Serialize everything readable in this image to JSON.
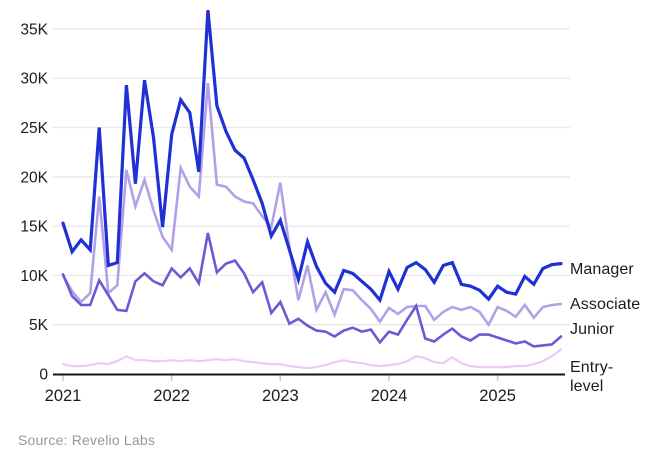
{
  "chart_data": {
    "type": "line",
    "title": "",
    "xlabel": "",
    "ylabel": "",
    "x_unit": "month",
    "x_start": "2021-01",
    "x_end": "2025-08",
    "grid": "horizontal",
    "legend_position": "right-of-line-ends",
    "ylim": [
      0,
      37500
    ],
    "y_ticks": [
      {
        "value": 0,
        "label": "0"
      },
      {
        "value": 5000,
        "label": "5K"
      },
      {
        "value": 10000,
        "label": "10K"
      },
      {
        "value": 15000,
        "label": "15K"
      },
      {
        "value": 20000,
        "label": "20K"
      },
      {
        "value": 25000,
        "label": "25K"
      },
      {
        "value": 30000,
        "label": "30K"
      },
      {
        "value": 35000,
        "label": "35K"
      }
    ],
    "x_ticks": [
      "2021",
      "2022",
      "2023",
      "2024",
      "2025"
    ],
    "series": [
      {
        "name": "Entry-level",
        "color": "#eaccf2",
        "width": 2.2,
        "values": [
          1000,
          800,
          800,
          900,
          1100,
          1000,
          1300,
          1800,
          1400,
          1400,
          1300,
          1300,
          1400,
          1300,
          1400,
          1300,
          1400,
          1500,
          1400,
          1500,
          1300,
          1200,
          1100,
          1000,
          1000,
          800,
          700,
          600,
          700,
          900,
          1200,
          1400,
          1200,
          1100,
          900,
          800,
          900,
          1000,
          1300,
          1800,
          1600,
          1200,
          1100,
          1700,
          1100,
          800,
          700,
          700,
          700,
          700,
          800,
          800,
          1000,
          1300,
          1800,
          2500
        ]
      },
      {
        "name": "Associate",
        "color": "#b2a0e8",
        "width": 2.6,
        "values": [
          10000,
          8400,
          7300,
          8200,
          18000,
          8200,
          9000,
          20700,
          17000,
          19700,
          16600,
          13900,
          12600,
          20900,
          19000,
          18000,
          29500,
          19200,
          19000,
          18000,
          17500,
          17300,
          16000,
          14900,
          19400,
          12900,
          7500,
          11000,
          6500,
          8300,
          6000,
          8600,
          8500,
          7500,
          6600,
          5300,
          6700,
          6100,
          6800,
          6900,
          6900,
          5500,
          6300,
          6800,
          6500,
          6800,
          6300,
          5000,
          6800,
          6400,
          5800,
          7000,
          5700,
          6800,
          7000,
          7100
        ]
      },
      {
        "name": "Junior",
        "color": "#6a5ad6",
        "width": 2.6,
        "values": [
          10100,
          7900,
          7000,
          7000,
          9500,
          8000,
          6500,
          6400,
          9400,
          10200,
          9400,
          9000,
          10700,
          9800,
          10700,
          9200,
          14300,
          10300,
          11200,
          11500,
          10200,
          8300,
          9300,
          6200,
          7300,
          5100,
          5600,
          4900,
          4400,
          4300,
          3800,
          4400,
          4700,
          4300,
          4500,
          3200,
          4300,
          4000,
          5500,
          6900,
          3600,
          3300,
          4000,
          4600,
          3800,
          3400,
          4000,
          4000,
          3700,
          3400,
          3100,
          3300,
          2800,
          2900,
          3000,
          3800
        ]
      },
      {
        "name": "Manager",
        "color": "#1f30d4",
        "width": 3.2,
        "values": [
          15300,
          12400,
          13600,
          12600,
          25000,
          11000,
          11300,
          29300,
          19300,
          29800,
          24000,
          14900,
          24300,
          27800,
          26500,
          20500,
          36900,
          27200,
          24600,
          22700,
          21900,
          19700,
          17300,
          14000,
          15600,
          12600,
          9600,
          13400,
          10900,
          9200,
          8300,
          10500,
          10200,
          9400,
          8600,
          7500,
          10400,
          8600,
          10800,
          11300,
          10600,
          9300,
          11000,
          11300,
          9100,
          8900,
          8500,
          7600,
          8900,
          8300,
          8100,
          9900,
          9100,
          10700,
          11100,
          11200
        ]
      }
    ]
  },
  "side_labels": {
    "manager": "Manager",
    "associate": "Associate",
    "junior": "Junior",
    "entry_line1": "Entry-",
    "entry_line2": "level"
  },
  "source": {
    "text": "Source: Revelio Labs"
  },
  "style": {
    "gridline_color": "#e9e9e9",
    "axis_color": "#141414",
    "tick_color": "#c8c8c8",
    "text_color": "#1c1c1c",
    "source_color": "#979797",
    "background": "#ffffff"
  }
}
